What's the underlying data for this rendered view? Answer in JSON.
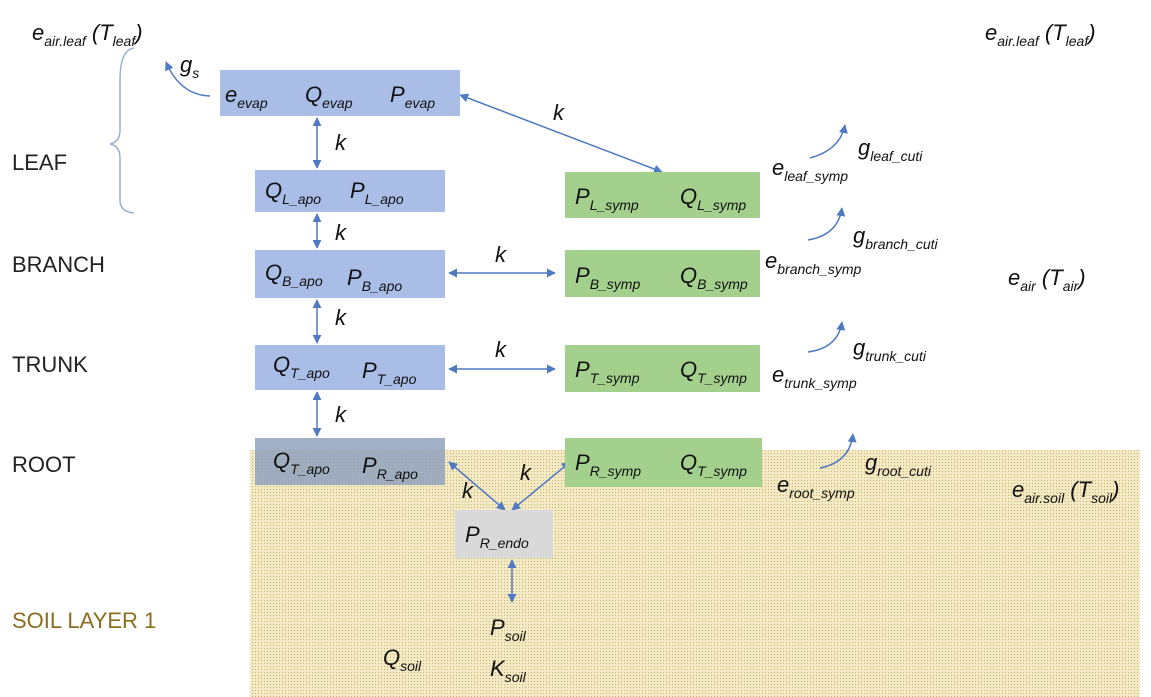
{
  "side_labels": [
    "LEAF",
    "BRANCH",
    "TRUNK",
    "ROOT",
    "SOIL LAYER 1"
  ],
  "boxes": [
    {
      "texts": [
        [
          "e",
          "evap"
        ],
        [
          "Q",
          "evap"
        ],
        [
          "P",
          "evap"
        ]
      ]
    },
    {
      "texts": [
        [
          "Q",
          "L_apo"
        ],
        [
          "P",
          "L_apo"
        ]
      ]
    },
    {
      "texts": [
        [
          "P",
          "L_symp"
        ],
        [
          "Q",
          "L_symp"
        ]
      ]
    },
    {
      "texts": [
        [
          "Q",
          "B_apo"
        ],
        [
          "P",
          "B_apo"
        ]
      ]
    },
    {
      "texts": [
        [
          "P",
          "B_symp"
        ],
        [
          "Q",
          "B_symp"
        ]
      ]
    },
    {
      "texts": [
        [
          "Q",
          "T_apo"
        ],
        [
          "P",
          "T_apo"
        ]
      ]
    },
    {
      "texts": [
        [
          "P",
          "T_symp"
        ],
        [
          "Q",
          "T_symp"
        ]
      ]
    },
    {
      "texts": [
        [
          "Q",
          "T_apo"
        ],
        [
          "P",
          "R_apo"
        ]
      ]
    },
    {
      "texts": [
        [
          "P",
          "R_symp"
        ],
        [
          "Q",
          "T_symp"
        ]
      ]
    },
    {
      "texts": [
        [
          "P",
          "R_endo"
        ]
      ]
    }
  ],
  "labels": [
    [
      "e",
      "air.leaf",
      " (T",
      "leaf",
      ")"
    ],
    [
      "e",
      "air.leaf",
      " (T",
      "leaf",
      ")"
    ],
    [
      "g",
      "s"
    ],
    [
      "g",
      "leaf_cuti"
    ],
    [
      "e",
      "leaf_symp"
    ],
    [
      "g",
      "branch_cuti"
    ],
    [
      "e",
      "branch_symp"
    ],
    [
      "e",
      "air",
      " (T",
      "air",
      ")"
    ],
    [
      "g",
      "trunk_cuti"
    ],
    [
      "e",
      "trunk_symp"
    ],
    [
      "g",
      "root_cuti"
    ],
    [
      "e",
      "root_symp"
    ],
    [
      "e",
      "air.soil",
      " (T",
      "soil",
      ")"
    ],
    [
      "Q",
      "soil"
    ],
    [
      "P",
      "soil"
    ],
    [
      "K",
      "soil"
    ]
  ],
  "k_labels": [
    "k",
    "k",
    "k",
    "k",
    "k",
    "k",
    "k",
    "k",
    "k"
  ]
}
